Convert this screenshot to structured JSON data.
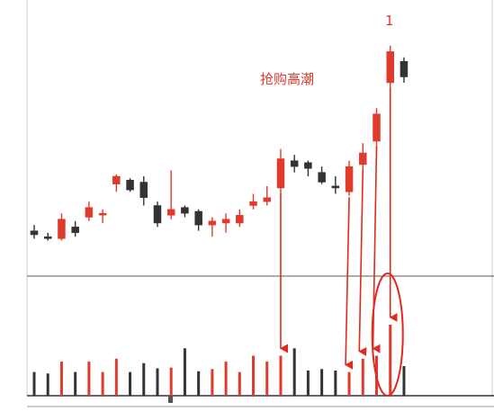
{
  "chart_data": {
    "type": "candlestick",
    "annotation_title": "抢购高潮",
    "marker_label": "1",
    "colors": {
      "up": "#e03a2c",
      "down": "#333333",
      "arrow": "#e02a1f",
      "grid": "#555555"
    },
    "candles": [
      {
        "o": 40,
        "h": 43,
        "l": 36,
        "c": 38
      },
      {
        "o": 37,
        "h": 39,
        "l": 35,
        "c": 36
      },
      {
        "o": 36,
        "h": 49,
        "l": 35,
        "c": 46
      },
      {
        "o": 42,
        "h": 45,
        "l": 37,
        "c": 39
      },
      {
        "o": 47,
        "h": 55,
        "l": 45,
        "c": 52
      },
      {
        "o": 49,
        "h": 51,
        "l": 44,
        "c": 49
      },
      {
        "o": 64,
        "h": 69,
        "l": 60,
        "c": 68
      },
      {
        "o": 66,
        "h": 67,
        "l": 60,
        "c": 61
      },
      {
        "o": 65,
        "h": 68,
        "l": 53,
        "c": 57
      },
      {
        "o": 53,
        "h": 55,
        "l": 42,
        "c": 44
      },
      {
        "o": 48,
        "h": 71,
        "l": 46,
        "c": 51
      },
      {
        "o": 52,
        "h": 53,
        "l": 47,
        "c": 49
      },
      {
        "o": 50,
        "h": 51,
        "l": 40,
        "c": 43
      },
      {
        "o": 43,
        "h": 47,
        "l": 37,
        "c": 45
      },
      {
        "o": 44,
        "h": 49,
        "l": 39,
        "c": 46
      },
      {
        "o": 44,
        "h": 51,
        "l": 42,
        "c": 48
      },
      {
        "o": 53,
        "h": 59,
        "l": 51,
        "c": 55
      },
      {
        "o": 55,
        "h": 63,
        "l": 53,
        "c": 57
      },
      {
        "o": 62,
        "h": 82,
        "l": 59,
        "c": 77
      },
      {
        "o": 76,
        "h": 79,
        "l": 70,
        "c": 73
      },
      {
        "o": 75,
        "h": 76,
        "l": 68,
        "c": 72
      },
      {
        "o": 70,
        "h": 73,
        "l": 64,
        "c": 65
      },
      {
        "o": 63,
        "h": 68,
        "l": 59,
        "c": 62
      },
      {
        "o": 60,
        "h": 76,
        "l": 58,
        "c": 73
      },
      {
        "o": 74,
        "h": 85,
        "l": 69,
        "c": 80
      },
      {
        "o": 86,
        "h": 103,
        "l": 82,
        "c": 100
      },
      {
        "o": 116,
        "h": 135,
        "l": 113,
        "c": 132
      },
      {
        "o": 127,
        "h": 129,
        "l": 116,
        "c": 119
      }
    ],
    "volume": [
      32,
      30,
      46,
      32,
      46,
      32,
      50,
      32,
      44,
      37,
      38,
      64,
      33,
      36,
      46,
      32,
      54,
      46,
      54,
      64,
      34,
      36,
      34,
      32,
      50,
      54,
      96,
      40
    ],
    "ylim": [
      20,
      140
    ],
    "volume_ylim": [
      0,
      170
    ],
    "arrows_to_volume_bars": [
      18,
      23,
      24,
      25,
      26
    ],
    "circled_volume_bar": 26,
    "marked_candle": 26
  }
}
